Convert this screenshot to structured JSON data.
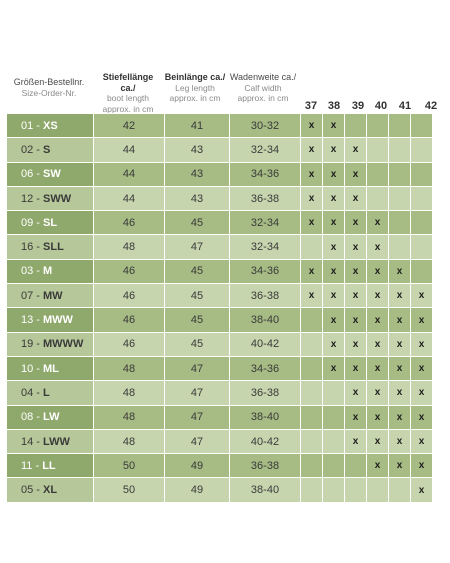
{
  "headers": {
    "order": {
      "de": "Größen-Bestellnr.",
      "en": "Size-Order-Nr."
    },
    "boot": {
      "de": "Stiefellänge ca./",
      "en1": "boot length",
      "en2": "approx. in cm"
    },
    "leg": {
      "de": "Beinlänge ca./",
      "en1": "Leg length",
      "en2": "approx. in cm"
    },
    "calf": {
      "de": "Wadenweite ca./",
      "en1": "Calf width",
      "en2": "approx. in cm"
    }
  },
  "shoe_sizes": [
    "37",
    "38",
    "39",
    "40",
    "41",
    "42"
  ],
  "mark": "x",
  "rows": [
    {
      "num": "01 - ",
      "code": "XS",
      "boot": "42",
      "leg": "41",
      "calf": "30-32",
      "sizes": [
        1,
        1,
        0,
        0,
        0,
        0
      ]
    },
    {
      "num": "02 - ",
      "code": "S",
      "boot": "44",
      "leg": "43",
      "calf": "32-34",
      "sizes": [
        1,
        1,
        1,
        0,
        0,
        0
      ]
    },
    {
      "num": "06 - ",
      "code": "SW",
      "boot": "44",
      "leg": "43",
      "calf": "34-36",
      "sizes": [
        1,
        1,
        1,
        0,
        0,
        0
      ]
    },
    {
      "num": "12 - ",
      "code": "SWW",
      "boot": "44",
      "leg": "43",
      "calf": "36-38",
      "sizes": [
        1,
        1,
        1,
        0,
        0,
        0
      ]
    },
    {
      "num": "09 - ",
      "code": "SL",
      "boot": "46",
      "leg": "45",
      "calf": "32-34",
      "sizes": [
        1,
        1,
        1,
        1,
        0,
        0
      ]
    },
    {
      "num": "16 - ",
      "code": "SLL",
      "boot": "48",
      "leg": "47",
      "calf": "32-34",
      "sizes": [
        0,
        1,
        1,
        1,
        0,
        0
      ]
    },
    {
      "num": "03 - ",
      "code": "M",
      "boot": "46",
      "leg": "45",
      "calf": "34-36",
      "sizes": [
        1,
        1,
        1,
        1,
        1,
        0
      ]
    },
    {
      "num": "07 - ",
      "code": "MW",
      "boot": "46",
      "leg": "45",
      "calf": "36-38",
      "sizes": [
        1,
        1,
        1,
        1,
        1,
        1
      ]
    },
    {
      "num": "13 - ",
      "code": "MWW",
      "boot": "46",
      "leg": "45",
      "calf": "38-40",
      "sizes": [
        0,
        1,
        1,
        1,
        1,
        1
      ]
    },
    {
      "num": "19 - ",
      "code": "MWWW",
      "boot": "46",
      "leg": "45",
      "calf": "40-42",
      "sizes": [
        0,
        1,
        1,
        1,
        1,
        1
      ]
    },
    {
      "num": "10 - ",
      "code": "ML",
      "boot": "48",
      "leg": "47",
      "calf": "34-36",
      "sizes": [
        0,
        1,
        1,
        1,
        1,
        1
      ]
    },
    {
      "num": "04 - ",
      "code": "L",
      "boot": "48",
      "leg": "47",
      "calf": "36-38",
      "sizes": [
        0,
        0,
        1,
        1,
        1,
        1
      ]
    },
    {
      "num": "08 - ",
      "code": "LW",
      "boot": "48",
      "leg": "47",
      "calf": "38-40",
      "sizes": [
        0,
        0,
        1,
        1,
        1,
        1
      ]
    },
    {
      "num": "14 - ",
      "code": "LWW",
      "boot": "48",
      "leg": "47",
      "calf": "40-42",
      "sizes": [
        0,
        0,
        1,
        1,
        1,
        1
      ]
    },
    {
      "num": "11 - ",
      "code": "LL",
      "boot": "50",
      "leg": "49",
      "calf": "36-38",
      "sizes": [
        0,
        0,
        0,
        1,
        1,
        1
      ]
    },
    {
      "num": "05 - ",
      "code": "XL",
      "boot": "50",
      "leg": "49",
      "calf": "38-40",
      "sizes": [
        0,
        0,
        0,
        0,
        0,
        1
      ]
    }
  ]
}
